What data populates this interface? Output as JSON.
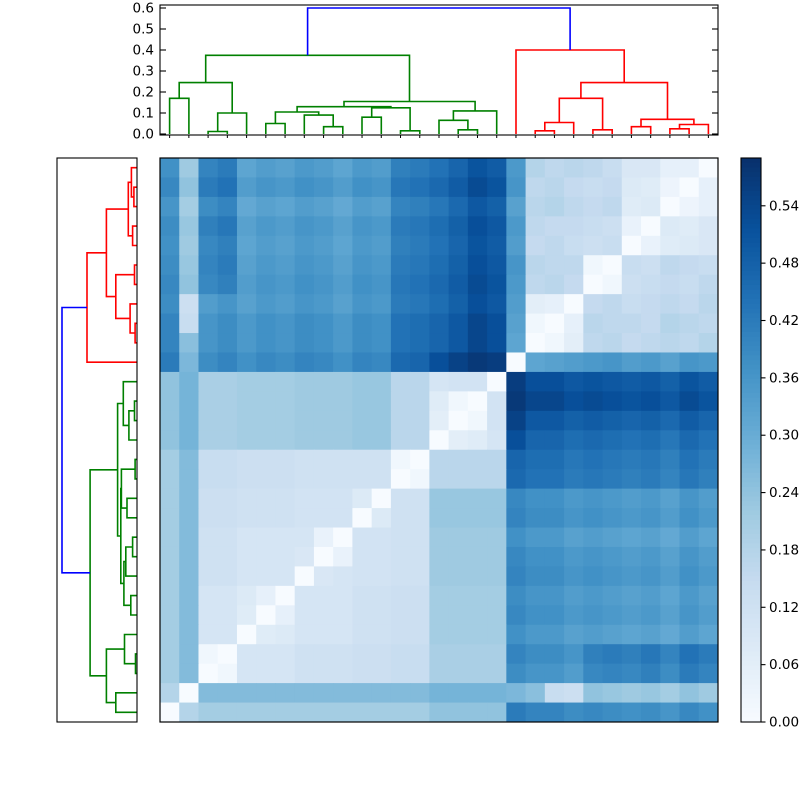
{
  "figure": {
    "background": "#ffffff",
    "description": "hierarchical-clustering-heatmap"
  },
  "chart_data": {
    "type": "heatmap",
    "n_leaves": 29,
    "vmax": 0.59,
    "grid": false,
    "colormap": {
      "name": "Blues",
      "stops": [
        [
          0.0,
          "#f7fbff"
        ],
        [
          0.125,
          "#deebf7"
        ],
        [
          0.25,
          "#c6dbef"
        ],
        [
          0.375,
          "#9ecae1"
        ],
        [
          0.5,
          "#6baed6"
        ],
        [
          0.625,
          "#4292c6"
        ],
        [
          0.75,
          "#2171b5"
        ],
        [
          0.875,
          "#08519c"
        ],
        [
          1.0,
          "#08306b"
        ]
      ]
    },
    "matrix": [
      [
        0.37,
        0.22,
        0.4,
        0.42,
        0.32,
        0.34,
        0.33,
        0.35,
        0.34,
        0.32,
        0.35,
        0.34,
        0.41,
        0.42,
        0.44,
        0.47,
        0.51,
        0.49,
        0.35,
        0.18,
        0.16,
        0.17,
        0.16,
        0.14,
        0.09,
        0.09,
        0.05,
        0.05,
        0.0
      ],
      [
        0.39,
        0.24,
        0.42,
        0.44,
        0.34,
        0.36,
        0.35,
        0.37,
        0.36,
        0.34,
        0.37,
        0.36,
        0.43,
        0.44,
        0.46,
        0.49,
        0.53,
        0.51,
        0.36,
        0.16,
        0.17,
        0.15,
        0.14,
        0.15,
        0.08,
        0.07,
        0.03,
        0.0,
        0.05
      ],
      [
        0.36,
        0.21,
        0.38,
        0.4,
        0.31,
        0.33,
        0.32,
        0.34,
        0.33,
        0.31,
        0.34,
        0.33,
        0.4,
        0.41,
        0.43,
        0.46,
        0.5,
        0.48,
        0.33,
        0.17,
        0.18,
        0.16,
        0.15,
        0.16,
        0.07,
        0.08,
        0.0,
        0.03,
        0.05
      ],
      [
        0.38,
        0.23,
        0.41,
        0.43,
        0.33,
        0.35,
        0.34,
        0.36,
        0.35,
        0.33,
        0.36,
        0.35,
        0.42,
        0.43,
        0.45,
        0.48,
        0.52,
        0.5,
        0.35,
        0.16,
        0.15,
        0.15,
        0.14,
        0.13,
        0.04,
        0.0,
        0.08,
        0.07,
        0.09
      ],
      [
        0.37,
        0.22,
        0.39,
        0.41,
        0.32,
        0.34,
        0.33,
        0.35,
        0.34,
        0.32,
        0.35,
        0.34,
        0.41,
        0.42,
        0.44,
        0.47,
        0.51,
        0.49,
        0.34,
        0.15,
        0.16,
        0.14,
        0.13,
        0.14,
        0.0,
        0.04,
        0.07,
        0.08,
        0.09
      ],
      [
        0.38,
        0.23,
        0.4,
        0.42,
        0.33,
        0.35,
        0.34,
        0.36,
        0.35,
        0.33,
        0.36,
        0.35,
        0.42,
        0.43,
        0.45,
        0.48,
        0.52,
        0.5,
        0.36,
        0.17,
        0.16,
        0.16,
        0.02,
        0.0,
        0.14,
        0.13,
        0.16,
        0.15,
        0.14
      ],
      [
        0.39,
        0.24,
        0.39,
        0.41,
        0.34,
        0.36,
        0.35,
        0.37,
        0.36,
        0.34,
        0.37,
        0.36,
        0.43,
        0.44,
        0.46,
        0.49,
        0.53,
        0.51,
        0.35,
        0.16,
        0.17,
        0.15,
        0.0,
        0.02,
        0.13,
        0.14,
        0.15,
        0.14,
        0.16
      ],
      [
        0.38,
        0.13,
        0.34,
        0.36,
        0.33,
        0.35,
        0.34,
        0.36,
        0.35,
        0.33,
        0.36,
        0.35,
        0.42,
        0.43,
        0.45,
        0.48,
        0.52,
        0.5,
        0.34,
        0.06,
        0.05,
        0.0,
        0.15,
        0.16,
        0.14,
        0.15,
        0.16,
        0.15,
        0.17
      ],
      [
        0.4,
        0.14,
        0.36,
        0.38,
        0.35,
        0.37,
        0.36,
        0.38,
        0.37,
        0.35,
        0.38,
        0.37,
        0.44,
        0.45,
        0.47,
        0.5,
        0.54,
        0.52,
        0.33,
        0.02,
        0.0,
        0.05,
        0.17,
        0.16,
        0.16,
        0.15,
        0.18,
        0.17,
        0.16
      ],
      [
        0.4,
        0.25,
        0.36,
        0.38,
        0.35,
        0.37,
        0.36,
        0.38,
        0.37,
        0.35,
        0.38,
        0.37,
        0.44,
        0.45,
        0.47,
        0.5,
        0.54,
        0.52,
        0.32,
        0.0,
        0.02,
        0.06,
        0.16,
        0.17,
        0.15,
        0.16,
        0.17,
        0.16,
        0.18
      ],
      [
        0.42,
        0.27,
        0.38,
        0.4,
        0.37,
        0.39,
        0.38,
        0.4,
        0.39,
        0.37,
        0.4,
        0.39,
        0.46,
        0.47,
        0.52,
        0.55,
        0.57,
        0.56,
        0.0,
        0.32,
        0.33,
        0.34,
        0.35,
        0.36,
        0.34,
        0.35,
        0.33,
        0.36,
        0.35
      ],
      [
        0.24,
        0.28,
        0.2,
        0.2,
        0.21,
        0.21,
        0.21,
        0.22,
        0.22,
        0.22,
        0.23,
        0.23,
        0.17,
        0.17,
        0.1,
        0.11,
        0.11,
        0.0,
        0.56,
        0.52,
        0.52,
        0.5,
        0.51,
        0.5,
        0.49,
        0.5,
        0.48,
        0.51,
        0.49
      ],
      [
        0.24,
        0.28,
        0.2,
        0.2,
        0.21,
        0.21,
        0.21,
        0.22,
        0.22,
        0.22,
        0.23,
        0.23,
        0.17,
        0.17,
        0.07,
        0.02,
        0.0,
        0.11,
        0.57,
        0.54,
        0.54,
        0.52,
        0.53,
        0.52,
        0.51,
        0.52,
        0.5,
        0.53,
        0.51
      ],
      [
        0.24,
        0.28,
        0.2,
        0.2,
        0.21,
        0.21,
        0.21,
        0.22,
        0.22,
        0.22,
        0.23,
        0.23,
        0.17,
        0.17,
        0.06,
        0.0,
        0.02,
        0.11,
        0.55,
        0.5,
        0.5,
        0.48,
        0.49,
        0.48,
        0.47,
        0.48,
        0.46,
        0.49,
        0.47
      ],
      [
        0.24,
        0.28,
        0.2,
        0.2,
        0.21,
        0.21,
        0.21,
        0.22,
        0.22,
        0.22,
        0.23,
        0.23,
        0.17,
        0.17,
        0.0,
        0.06,
        0.07,
        0.1,
        0.52,
        0.47,
        0.47,
        0.45,
        0.46,
        0.45,
        0.44,
        0.45,
        0.43,
        0.46,
        0.44
      ],
      [
        0.21,
        0.26,
        0.14,
        0.14,
        0.13,
        0.13,
        0.13,
        0.12,
        0.12,
        0.12,
        0.12,
        0.12,
        0.02,
        0.0,
        0.17,
        0.17,
        0.17,
        0.17,
        0.47,
        0.45,
        0.45,
        0.43,
        0.44,
        0.43,
        0.42,
        0.43,
        0.41,
        0.44,
        0.42
      ],
      [
        0.21,
        0.26,
        0.14,
        0.14,
        0.13,
        0.13,
        0.13,
        0.12,
        0.12,
        0.12,
        0.12,
        0.12,
        0.0,
        0.02,
        0.17,
        0.17,
        0.17,
        0.17,
        0.46,
        0.44,
        0.44,
        0.42,
        0.43,
        0.42,
        0.41,
        0.42,
        0.4,
        0.43,
        0.41
      ],
      [
        0.21,
        0.26,
        0.13,
        0.13,
        0.12,
        0.12,
        0.12,
        0.11,
        0.11,
        0.11,
        0.08,
        0.0,
        0.12,
        0.12,
        0.23,
        0.23,
        0.23,
        0.23,
        0.39,
        0.37,
        0.37,
        0.35,
        0.36,
        0.35,
        0.34,
        0.35,
        0.33,
        0.36,
        0.34
      ],
      [
        0.21,
        0.26,
        0.13,
        0.13,
        0.12,
        0.12,
        0.12,
        0.11,
        0.11,
        0.11,
        0.0,
        0.08,
        0.12,
        0.12,
        0.23,
        0.23,
        0.23,
        0.23,
        0.4,
        0.38,
        0.38,
        0.36,
        0.37,
        0.36,
        0.35,
        0.36,
        0.34,
        0.37,
        0.35
      ],
      [
        0.21,
        0.26,
        0.12,
        0.12,
        0.1,
        0.1,
        0.1,
        0.1,
        0.04,
        0.0,
        0.11,
        0.11,
        0.12,
        0.12,
        0.22,
        0.22,
        0.22,
        0.22,
        0.37,
        0.35,
        0.35,
        0.33,
        0.34,
        0.33,
        0.32,
        0.33,
        0.31,
        0.34,
        0.32
      ],
      [
        0.21,
        0.26,
        0.12,
        0.12,
        0.1,
        0.1,
        0.1,
        0.09,
        0.0,
        0.04,
        0.11,
        0.11,
        0.12,
        0.12,
        0.22,
        0.22,
        0.22,
        0.22,
        0.39,
        0.37,
        0.37,
        0.35,
        0.36,
        0.35,
        0.34,
        0.35,
        0.33,
        0.36,
        0.34
      ],
      [
        0.21,
        0.26,
        0.12,
        0.12,
        0.1,
        0.1,
        0.1,
        0.0,
        0.09,
        0.1,
        0.11,
        0.11,
        0.12,
        0.12,
        0.22,
        0.22,
        0.22,
        0.22,
        0.4,
        0.38,
        0.38,
        0.36,
        0.37,
        0.36,
        0.35,
        0.36,
        0.34,
        0.37,
        0.35
      ],
      [
        0.21,
        0.26,
        0.1,
        0.1,
        0.08,
        0.05,
        0.0,
        0.1,
        0.1,
        0.1,
        0.12,
        0.12,
        0.13,
        0.13,
        0.21,
        0.21,
        0.21,
        0.21,
        0.38,
        0.36,
        0.36,
        0.34,
        0.35,
        0.34,
        0.33,
        0.34,
        0.32,
        0.35,
        0.33
      ],
      [
        0.21,
        0.26,
        0.1,
        0.1,
        0.07,
        0.0,
        0.05,
        0.1,
        0.1,
        0.1,
        0.12,
        0.12,
        0.13,
        0.13,
        0.21,
        0.21,
        0.21,
        0.21,
        0.39,
        0.37,
        0.37,
        0.35,
        0.36,
        0.35,
        0.34,
        0.35,
        0.33,
        0.36,
        0.34
      ],
      [
        0.21,
        0.26,
        0.1,
        0.1,
        0.0,
        0.07,
        0.08,
        0.1,
        0.1,
        0.1,
        0.12,
        0.12,
        0.13,
        0.13,
        0.21,
        0.21,
        0.21,
        0.21,
        0.37,
        0.35,
        0.35,
        0.33,
        0.34,
        0.33,
        0.32,
        0.33,
        0.31,
        0.34,
        0.32
      ],
      [
        0.21,
        0.26,
        0.02,
        0.0,
        0.1,
        0.1,
        0.1,
        0.12,
        0.12,
        0.12,
        0.13,
        0.13,
        0.14,
        0.14,
        0.2,
        0.2,
        0.2,
        0.2,
        0.4,
        0.38,
        0.38,
        0.36,
        0.41,
        0.42,
        0.41,
        0.43,
        0.4,
        0.44,
        0.42
      ],
      [
        0.21,
        0.26,
        0.0,
        0.02,
        0.1,
        0.1,
        0.1,
        0.12,
        0.12,
        0.12,
        0.13,
        0.13,
        0.14,
        0.14,
        0.2,
        0.2,
        0.2,
        0.2,
        0.38,
        0.36,
        0.36,
        0.34,
        0.39,
        0.4,
        0.39,
        0.41,
        0.38,
        0.42,
        0.4
      ],
      [
        0.18,
        0.0,
        0.26,
        0.26,
        0.26,
        0.26,
        0.26,
        0.26,
        0.26,
        0.26,
        0.26,
        0.26,
        0.26,
        0.26,
        0.28,
        0.28,
        0.28,
        0.28,
        0.27,
        0.25,
        0.14,
        0.13,
        0.24,
        0.23,
        0.22,
        0.23,
        0.21,
        0.24,
        0.22
      ],
      [
        0.0,
        0.18,
        0.21,
        0.21,
        0.21,
        0.21,
        0.21,
        0.21,
        0.21,
        0.21,
        0.21,
        0.21,
        0.21,
        0.21,
        0.24,
        0.24,
        0.24,
        0.24,
        0.42,
        0.4,
        0.4,
        0.38,
        0.39,
        0.38,
        0.37,
        0.38,
        0.36,
        0.39,
        0.37
      ]
    ],
    "row_order_note": "row i corresponds to column 28-i (diagonal runs bottom-left to top-right)",
    "top_axis": {
      "tick_labels": [
        "0.0",
        "0.1",
        "0.2",
        "0.3",
        "0.4",
        "0.5",
        "0.6"
      ],
      "tick_values": [
        0.0,
        0.1,
        0.2,
        0.3,
        0.4,
        0.5,
        0.6
      ],
      "range": [
        0.0,
        0.615
      ]
    },
    "colorbar": {
      "tick_labels": [
        "0.00",
        "0.06",
        "0.12",
        "0.18",
        "0.24",
        "0.30",
        "0.36",
        "0.42",
        "0.48",
        "0.54"
      ],
      "tick_values": [
        0.0,
        0.06,
        0.12,
        0.18,
        0.24,
        0.3,
        0.36,
        0.42,
        0.48,
        0.54
      ],
      "range": [
        0.0,
        0.59
      ]
    },
    "dendrogram": {
      "palette": {
        "green": "#008000",
        "red": "#ff0000",
        "blue": "#0000ff"
      },
      "merges": [
        {
          "a": 0,
          "b": 1,
          "h": 0.17,
          "color": "green"
        },
        {
          "a": 2,
          "b": 3,
          "h": 0.012,
          "color": "green"
        },
        {
          "a": "m1",
          "b": 4,
          "h": 0.1,
          "color": "green"
        },
        {
          "a": 5,
          "b": 6,
          "h": 0.05,
          "color": "green"
        },
        {
          "a": 8,
          "b": 9,
          "h": 0.035,
          "color": "green"
        },
        {
          "a": 7,
          "b": "m4",
          "h": 0.09,
          "color": "green"
        },
        {
          "a": "m3",
          "b": "m5",
          "h": 0.105,
          "color": "green"
        },
        {
          "a": 10,
          "b": 11,
          "h": 0.08,
          "color": "green"
        },
        {
          "a": 12,
          "b": 13,
          "h": 0.015,
          "color": "green"
        },
        {
          "a": "m7",
          "b": "m8",
          "h": 0.125,
          "color": "green"
        },
        {
          "a": "m6",
          "b": "m9",
          "h": 0.13,
          "color": "green"
        },
        {
          "a": 15,
          "b": 16,
          "h": 0.02,
          "color": "green"
        },
        {
          "a": 14,
          "b": "m11",
          "h": 0.065,
          "color": "green"
        },
        {
          "a": "m12",
          "b": 17,
          "h": 0.11,
          "color": "green"
        },
        {
          "a": "m10",
          "b": "m13",
          "h": 0.155,
          "color": "green"
        },
        {
          "a": "m0",
          "b": "m2",
          "h": 0.245,
          "color": "green"
        },
        {
          "a": "m15",
          "b": "m14",
          "h": 0.375,
          "color": "green"
        },
        {
          "a": 19,
          "b": 20,
          "h": 0.015,
          "color": "red"
        },
        {
          "a": "m17",
          "b": 21,
          "h": 0.055,
          "color": "red"
        },
        {
          "a": 22,
          "b": 23,
          "h": 0.02,
          "color": "red"
        },
        {
          "a": "m18",
          "b": "m19",
          "h": 0.17,
          "color": "red"
        },
        {
          "a": 24,
          "b": 25,
          "h": 0.035,
          "color": "red"
        },
        {
          "a": 26,
          "b": 27,
          "h": 0.025,
          "color": "red"
        },
        {
          "a": "m22",
          "b": 28,
          "h": 0.045,
          "color": "red"
        },
        {
          "a": "m21",
          "b": "m23",
          "h": 0.07,
          "color": "red"
        },
        {
          "a": "m20",
          "b": "m24",
          "h": 0.245,
          "color": "red"
        },
        {
          "a": 18,
          "b": "m25",
          "h": 0.4,
          "color": "red"
        },
        {
          "a": "m16",
          "b": "m26",
          "h": 0.6,
          "color": "blue"
        }
      ]
    }
  }
}
